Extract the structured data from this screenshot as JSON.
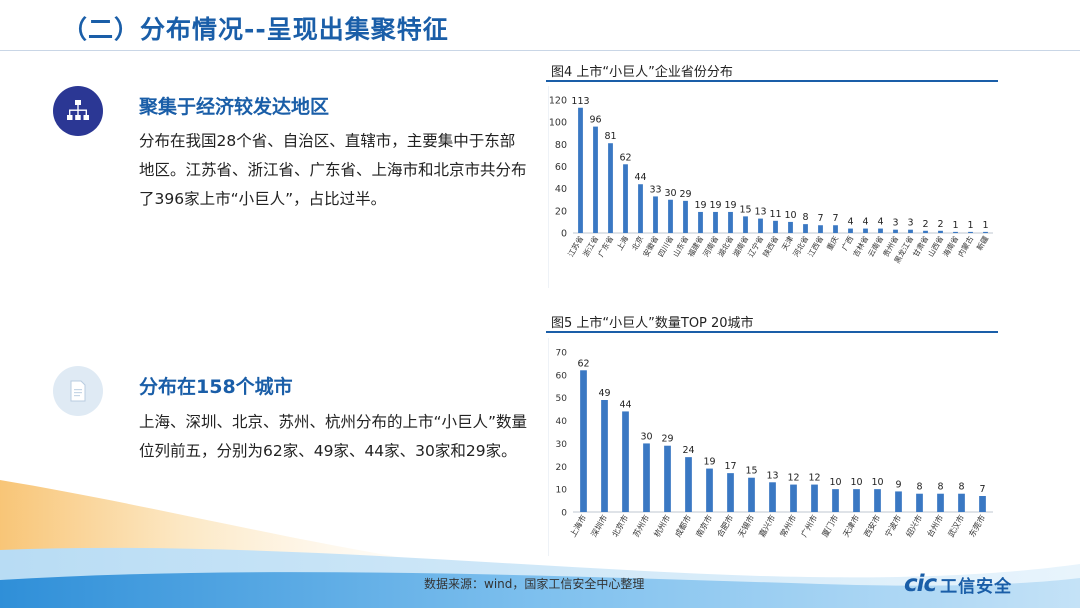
{
  "page": {
    "title": "（二）分布情况--呈现出集聚特征"
  },
  "section1": {
    "heading": "聚集于经济较发达地区",
    "body": "分布在我国28个省、自治区、直辖市，主要集中于东部地区。江苏省、浙江省、广东省、上海市和北京市共分布了396家上市“小巨人”，占比过半。",
    "icon": "org-chart-icon"
  },
  "section2": {
    "heading": "分布在158个城市",
    "body": "上海、深圳、北京、苏州、杭州分布的上市“小巨人”数量位列前五，分别为62家、49家、44家、30家和29家。",
    "icon": "document-icon"
  },
  "footer": {
    "source": "数据来源：wind，国家工信安全中心整理",
    "logo_mark": "cic",
    "logo_text": "工信安全"
  },
  "colors": {
    "bar": "#3a78c3",
    "title": "#1a5ea8",
    "icon_dark": "#2b3794"
  },
  "chart_data": [
    {
      "type": "bar",
      "title": "图4 上市“小巨人”企业省份分布",
      "categories": [
        "江苏省",
        "浙江省",
        "广东省",
        "上海",
        "北京",
        "安徽省",
        "四川省",
        "山东省",
        "福建省",
        "河南省",
        "湖北省",
        "湖南省",
        "辽宁省",
        "陕西省",
        "天津",
        "河北省",
        "江西省",
        "重庆",
        "广西",
        "吉林省",
        "云南省",
        "贵州省",
        "黑龙江省",
        "甘肃省",
        "山西省",
        "海南省",
        "内蒙古",
        "新疆"
      ],
      "values": [
        113,
        96,
        81,
        62,
        44,
        33,
        30,
        29,
        19,
        19,
        19,
        15,
        13,
        11,
        10,
        8,
        7,
        7,
        4,
        4,
        4,
        3,
        3,
        2,
        2,
        1,
        1,
        1
      ],
      "yticks": [
        0,
        20,
        40,
        60,
        80,
        100,
        120
      ],
      "ylim": [
        0,
        120
      ],
      "xlabel": "",
      "ylabel": ""
    },
    {
      "type": "bar",
      "title": "图5 上市“小巨人”数量TOP 20城市",
      "categories": [
        "上海市",
        "深圳市",
        "北京市",
        "苏州市",
        "杭州市",
        "成都市",
        "南京市",
        "合肥市",
        "无锡市",
        "嘉兴市",
        "常州市",
        "广州市",
        "厦门市",
        "天津市",
        "西安市",
        "宁波市",
        "绍兴市",
        "台州市",
        "武汉市",
        "东莞市"
      ],
      "values": [
        62,
        49,
        44,
        30,
        29,
        24,
        19,
        17,
        15,
        13,
        12,
        12,
        10,
        10,
        10,
        9,
        8,
        8,
        8,
        7
      ],
      "yticks": [
        0,
        10,
        20,
        30,
        40,
        50,
        60,
        70
      ],
      "ylim": [
        0,
        70
      ],
      "xlabel": "",
      "ylabel": ""
    }
  ]
}
